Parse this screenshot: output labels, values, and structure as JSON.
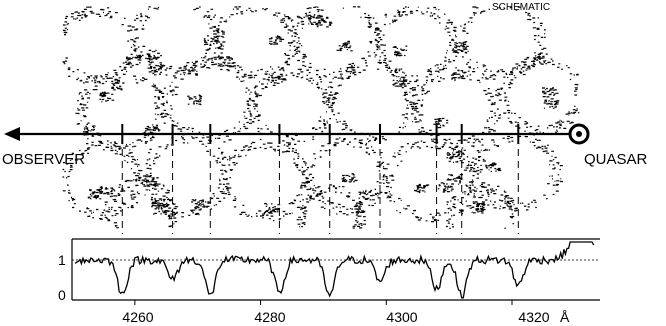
{
  "labels": {
    "schematic": "SCHEMATIC",
    "observer": "OBSERVER",
    "quasar": "QUASAR"
  },
  "spectrum": {
    "x_unit": "Å",
    "x_ticks": [
      "4260",
      "4280",
      "4300",
      "4320"
    ],
    "x_tick_values": [
      4260,
      4280,
      4300,
      4320
    ],
    "x_range": [
      4250,
      4334
    ],
    "y_ticks": [
      "1",
      "0"
    ],
    "y_tick_values": [
      1,
      0
    ],
    "y_range": [
      -0.15,
      1.6
    ],
    "absorption_lines": [
      4258,
      4266,
      4272,
      4283,
      4291,
      4299,
      4308,
      4312,
      4321
    ],
    "emission_peak": 4331
  }
}
